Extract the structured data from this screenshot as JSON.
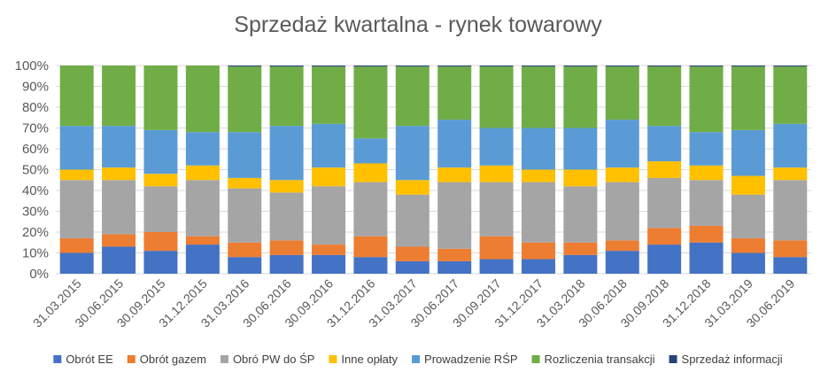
{
  "chart_data": {
    "type": "bar",
    "stacked": "percent",
    "title": "Sprzedaż kwartalna - rynek towarowy",
    "xlabel": "",
    "ylabel": "",
    "ylim": [
      0,
      100
    ],
    "y_ticks": [
      "0%",
      "10%",
      "20%",
      "30%",
      "40%",
      "50%",
      "60%",
      "70%",
      "80%",
      "90%",
      "100%"
    ],
    "grid": true,
    "legend_position": "bottom",
    "categories": [
      "31.03.2015",
      "30.06.2015",
      "30.09.2015",
      "31.12.2015",
      "31.03.2016",
      "30.06.2016",
      "30.09.2016",
      "31.12.2016",
      "31.03.2017",
      "30.06.2017",
      "30.09.2017",
      "31.12.2017",
      "31.03.2018",
      "30.06.2018",
      "30.09.2018",
      "31.12.2018",
      "31.03.2019",
      "30.06.2019"
    ],
    "series": [
      {
        "name": "Obrót EE",
        "color": "#4472C4",
        "values": [
          10,
          13,
          11,
          14,
          8,
          9,
          9,
          8,
          6,
          6,
          7,
          7,
          9,
          11,
          14,
          15,
          10,
          8
        ]
      },
      {
        "name": "Obrót gazem",
        "color": "#ED7D31",
        "values": [
          7,
          6,
          9,
          4,
          7,
          7,
          5,
          10,
          7,
          6,
          11,
          8,
          6,
          5,
          8,
          8,
          7,
          8
        ]
      },
      {
        "name": "Obró PW do ŚP",
        "color": "#A5A5A5",
        "values": [
          28,
          26,
          22,
          27,
          26,
          23,
          28,
          26,
          25,
          32,
          26,
          29,
          27,
          28,
          24,
          22,
          21,
          29
        ]
      },
      {
        "name": "Inne opłaty",
        "color": "#FFC000",
        "values": [
          5,
          6,
          6,
          7,
          5,
          6,
          9,
          9,
          7,
          7,
          8,
          6,
          8,
          7,
          8,
          7,
          9,
          6
        ]
      },
      {
        "name": "Prowadzenie RŚP",
        "color": "#5B9BD5",
        "values": [
          21,
          20,
          21,
          16,
          22,
          26,
          21,
          12,
          26,
          23,
          18,
          20,
          20,
          23,
          17,
          16,
          22,
          21
        ]
      },
      {
        "name": "Rozliczenia transakcji",
        "color": "#70AD47",
        "values": [
          29,
          29,
          31,
          32,
          31.5,
          28.5,
          27.5,
          34.5,
          28.5,
          25.5,
          29.5,
          29.5,
          29.5,
          25.5,
          28.5,
          31.5,
          30.5,
          27.5
        ]
      },
      {
        "name": "Sprzedaż informacji",
        "color": "#264478",
        "values": [
          0,
          0,
          0,
          0,
          0.5,
          0.5,
          0.5,
          0.5,
          0.5,
          0.5,
          0.5,
          0.5,
          0.5,
          0.5,
          0.5,
          0.5,
          0.5,
          0.5
        ]
      }
    ]
  }
}
